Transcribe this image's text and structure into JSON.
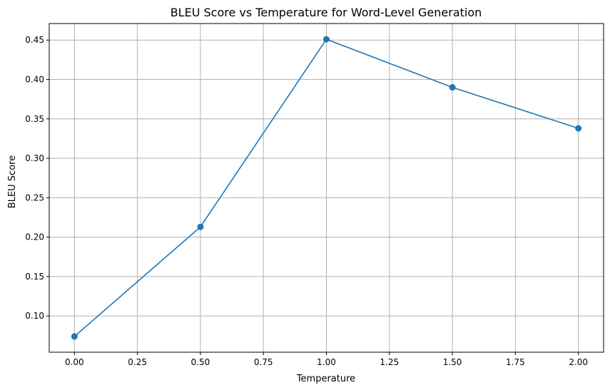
{
  "chart_data": {
    "type": "line",
    "title": "BLEU Score vs Temperature for Word-Level Generation",
    "xlabel": "Temperature",
    "ylabel": "BLEU Score",
    "x": [
      0.0,
      0.5,
      1.0,
      1.5,
      2.0
    ],
    "series": [
      {
        "values": [
          0.074,
          0.213,
          0.451,
          0.39,
          0.338
        ],
        "color": "#1f77b4",
        "marker": "circle"
      }
    ],
    "xlim": [
      -0.1,
      2.1
    ],
    "ylim": [
      0.054,
      0.471
    ],
    "xticks": [
      0.0,
      0.25,
      0.5,
      0.75,
      1.0,
      1.25,
      1.5,
      1.75,
      2.0
    ],
    "xtick_labels": [
      "0.00",
      "0.25",
      "0.50",
      "0.75",
      "1.00",
      "1.25",
      "1.50",
      "1.75",
      "2.00"
    ],
    "yticks": [
      0.1,
      0.15,
      0.2,
      0.25,
      0.3,
      0.35,
      0.4,
      0.45
    ],
    "ytick_labels": [
      "0.10",
      "0.15",
      "0.20",
      "0.25",
      "0.30",
      "0.35",
      "0.40",
      "0.45"
    ],
    "grid": true,
    "legend": "none"
  }
}
